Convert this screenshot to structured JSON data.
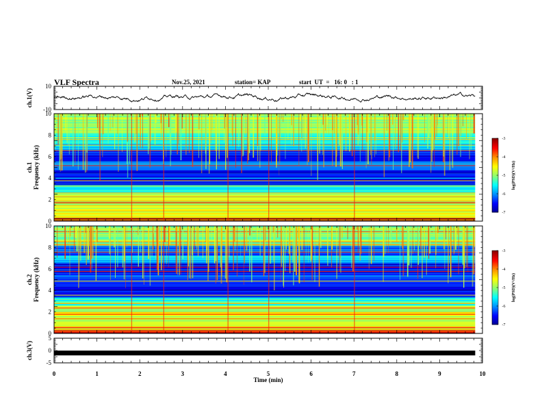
{
  "header": {
    "title": "VLF Spectra",
    "date": "Nov.25, 2021",
    "station": "station= KAP",
    "start": "start  UT  =   16: 0   : 1"
  },
  "chart_data": [
    {
      "type": "line",
      "ylabel": "ch.1(V)",
      "ylim": [
        -10,
        10
      ],
      "ytick_labels": [
        "10",
        "-10"
      ],
      "x_range_min": [
        0,
        9.83
      ],
      "signal_level_approx": [
        -2,
        4
      ]
    },
    {
      "type": "heatmap",
      "ylabel": "ch.1\nFrequency (kHz)",
      "ylim": [
        0,
        10
      ],
      "ytick_labels": [
        "0",
        "2",
        "4",
        "6",
        "8",
        "10"
      ],
      "colorbar": {
        "label": "log(PSD)(V²/Hz)",
        "range": [
          -7,
          -3
        ],
        "tick_labels": [
          "-3",
          "-4",
          "-5",
          "-6",
          "-7"
        ]
      }
    },
    {
      "type": "heatmap",
      "ylabel": "ch.2\nFrequency (kHz)",
      "ylim": [
        0,
        10
      ],
      "ytick_labels": [
        "0",
        "2",
        "4",
        "6",
        "8",
        "10"
      ],
      "colorbar": {
        "label": "log(PSD)(V²/Hz)",
        "range": [
          -7,
          -3
        ],
        "tick_labels": [
          "-3",
          "-4",
          "-5",
          "-6",
          "-7"
        ]
      }
    },
    {
      "type": "line",
      "ylabel": "ch.3(V)",
      "ylim": [
        -5,
        5
      ],
      "ytick_labels": [
        "5",
        "0",
        "-5"
      ],
      "constant_value_approx": -1
    }
  ],
  "xaxis": {
    "label": "Time (min)",
    "range": [
      0,
      10
    ],
    "tick_labels": [
      "0",
      "1",
      "2",
      "3",
      "4",
      "5",
      "6",
      "7",
      "8",
      "9",
      "10"
    ]
  },
  "colors": {
    "scale": [
      "#00008f",
      "#0000ff",
      "#008fff",
      "#00ffff",
      "#8fff70",
      "#ffff00",
      "#ff8f00",
      "#ff0000",
      "#8f0000"
    ]
  }
}
